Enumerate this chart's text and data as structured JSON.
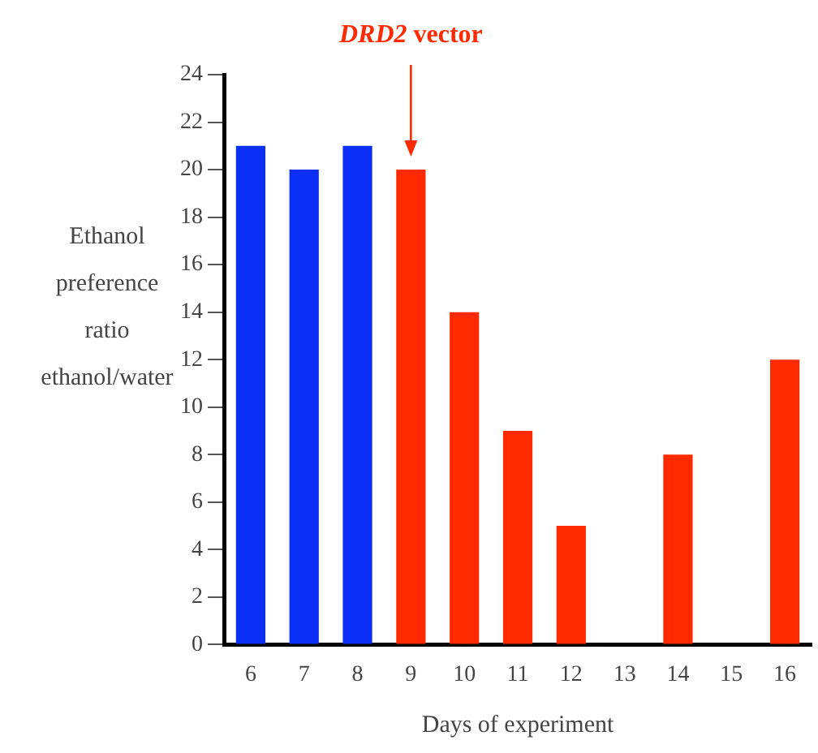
{
  "chart_data": {
    "type": "bar",
    "xlabel": "Days of experiment",
    "ylabel": "Ethanol preference ratio ethanol/water",
    "categories": [
      "6",
      "7",
      "8",
      "9",
      "10",
      "11",
      "12",
      "13",
      "14",
      "15",
      "16"
    ],
    "series": [
      {
        "color": "#0b2ff5",
        "values": [
          21,
          20,
          21,
          null,
          null,
          null,
          null,
          null,
          null,
          null,
          null
        ]
      },
      {
        "color": "#ff2a00",
        "values": [
          null,
          null,
          null,
          20,
          14,
          9,
          5,
          0,
          8,
          0,
          12
        ]
      }
    ],
    "ylim": [
      0,
      24
    ],
    "yticks": [
      0,
      2,
      4,
      6,
      8,
      10,
      12,
      14,
      16,
      18,
      20,
      22,
      24
    ],
    "grid": false,
    "legend": false,
    "annotations": [
      "DRD2 vector"
    ]
  }
}
